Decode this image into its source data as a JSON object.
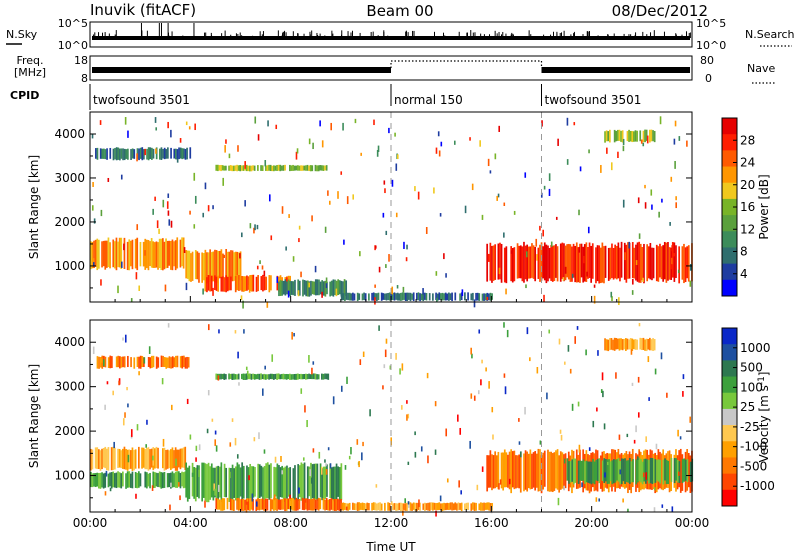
{
  "header": {
    "station": "Inuvik (fitACF)",
    "beam": "Beam 00",
    "date": "08/Dec/2012"
  },
  "strips": {
    "nsky_label": "N.Sky",
    "nsky_tick_top": "10^5",
    "nsky_tick_bottom": "10^0",
    "nsearch_label": "N.Search",
    "nsearch_tick_top": "10^5",
    "nsearch_tick_bottom": "10^0",
    "freq_label_line1": "Freq.",
    "freq_label_line2": "[MHz]",
    "freq_tick_top": "18",
    "freq_tick_bottom": "8",
    "nave_label": "Nave",
    "nave_tick_top": "80",
    "nave_tick_bottom": "0",
    "cpid_label": "CPID",
    "cpid_segments": [
      {
        "name": "twofsound 3501",
        "start_hour": 0,
        "end_hour": 12
      },
      {
        "name": "normal 150",
        "start_hour": 12,
        "end_hour": 18
      },
      {
        "name": "twofsound 3501",
        "start_hour": 18,
        "end_hour": 24
      }
    ]
  },
  "colors": {
    "power": [
      "#0000ff",
      "#1e3ca0",
      "#2f6e6e",
      "#3c8c5a",
      "#5aa03c",
      "#78b428",
      "#f0c81e",
      "#ff9600",
      "#ff5a00",
      "#ff1e00",
      "#e60000"
    ],
    "velocity": [
      "#ff0000",
      "#ff4600",
      "#ff7800",
      "#ffa000",
      "#ffc850",
      "#c8c8c8",
      "#78c83c",
      "#3ca03c",
      "#2d7850",
      "#1e50a0",
      "#0a28c8"
    ]
  },
  "chart_data": [
    {
      "type": "heatmap",
      "name": "power",
      "x_unit": "hours UT",
      "y_unit": "km",
      "xlim": [
        0,
        24
      ],
      "ylim": [
        180,
        4500
      ],
      "ylabel": "Slant Range [km]",
      "ytick_values": [
        1000,
        2000,
        3000,
        4000
      ],
      "ytick_labels": [
        "1000",
        "2000",
        "3000",
        "4000"
      ],
      "colorbar_label": "Power [dB]",
      "colorbar_ticks": [
        "4",
        "8",
        "12",
        "16",
        "20",
        "24",
        "28"
      ],
      "colorbar_range": [
        0,
        30
      ],
      "echo_bands": [
        {
          "x0": 0,
          "x1": 3.8,
          "y0": 900,
          "y1": 1650,
          "value": 20
        },
        {
          "x0": 3.8,
          "x1": 6.0,
          "y0": 600,
          "y1": 1400,
          "value": 22
        },
        {
          "x0": 4.5,
          "x1": 8.0,
          "y0": 400,
          "y1": 800,
          "value": 24
        },
        {
          "x0": 7.5,
          "x1": 10.2,
          "y0": 300,
          "y1": 700,
          "value": 10
        },
        {
          "x0": 10.0,
          "x1": 16.0,
          "y0": 200,
          "y1": 400,
          "value": 6
        },
        {
          "x0": 15.8,
          "x1": 24.0,
          "y0": 600,
          "y1": 1550,
          "value": 27
        },
        {
          "x0": 5.0,
          "x1": 9.5,
          "y0": 3150,
          "y1": 3300,
          "value": 14
        },
        {
          "x0": 0.2,
          "x1": 4.0,
          "y0": 3400,
          "y1": 3700,
          "value": 6
        },
        {
          "x0": 20.5,
          "x1": 22.5,
          "y0": 3800,
          "y1": 4100,
          "value": 16
        }
      ]
    },
    {
      "type": "heatmap",
      "name": "velocity",
      "x_unit": "hours UT",
      "y_unit": "km",
      "xlim": [
        0,
        24
      ],
      "ylim": [
        180,
        4500
      ],
      "ylabel": "Slant Range [km]",
      "xlabel": "Time UT",
      "xtick_values": [
        0,
        4,
        8,
        12,
        16,
        20,
        24
      ],
      "xtick_labels": [
        "00:00",
        "04:00",
        "08:00",
        "12:00",
        "16:00",
        "20:00",
        "00:00"
      ],
      "ytick_values": [
        1000,
        2000,
        3000,
        4000
      ],
      "ytick_labels": [
        "1000",
        "2000",
        "3000",
        "4000"
      ],
      "colorbar_label": "Velocity [m s^-1]",
      "colorbar_ticks": [
        "1000",
        "500",
        "100",
        "25",
        "-25",
        "-100",
        "-500",
        "-1000"
      ],
      "echo_bands": [
        {
          "x0": 0,
          "x1": 3.8,
          "y0": 1100,
          "y1": 1650,
          "value": -100
        },
        {
          "x0": 0,
          "x1": 3.8,
          "y0": 700,
          "y1": 1100,
          "value": 100
        },
        {
          "x0": 3.8,
          "x1": 10.0,
          "y0": 400,
          "y1": 1300,
          "value": 100
        },
        {
          "x0": 5.0,
          "x1": 10.0,
          "y0": 200,
          "y1": 500,
          "value": -300
        },
        {
          "x0": 10.0,
          "x1": 16.0,
          "y0": 200,
          "y1": 400,
          "value": -150
        },
        {
          "x0": 15.8,
          "x1": 24.0,
          "y0": 600,
          "y1": 1600,
          "value": -200
        },
        {
          "x0": 19.0,
          "x1": 24.0,
          "y0": 800,
          "y1": 1400,
          "value": 100
        },
        {
          "x0": 5.0,
          "x1": 9.5,
          "y0": 3150,
          "y1": 3300,
          "value": 100
        },
        {
          "x0": 0.2,
          "x1": 4.0,
          "y0": 3400,
          "y1": 3700,
          "value": -200
        },
        {
          "x0": 20.5,
          "x1": 22.5,
          "y0": 3800,
          "y1": 4100,
          "value": -100
        }
      ]
    }
  ]
}
